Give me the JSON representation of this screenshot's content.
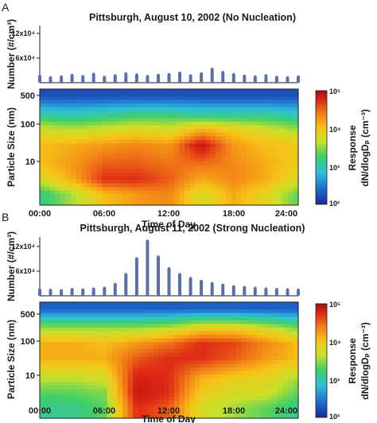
{
  "chart_data": [
    {
      "panel": "A",
      "title": "Pittsburgh, August 10, 2002 (No Nucleation)",
      "number_panel": {
        "type": "bar",
        "ylabel": "Number (#/cm³)",
        "ytick_labels": [
          "12x10⁴",
          "6x10⁴"
        ],
        "yticks": [
          120000,
          60000
        ],
        "ylim": [
          0,
          150000
        ],
        "x": [
          0,
          1,
          2,
          3,
          4,
          5,
          6,
          7,
          8,
          9,
          10,
          11,
          12,
          13,
          14,
          15,
          16,
          17,
          18,
          19,
          20,
          21,
          22,
          23,
          24
        ],
        "values": [
          18000,
          14000,
          16000,
          20000,
          17000,
          23000,
          15000,
          19000,
          24000,
          21000,
          17000,
          20000,
          22000,
          26000,
          19000,
          24000,
          36000,
          28000,
          22000,
          18000,
          16000,
          19000,
          15000,
          14000,
          16000
        ]
      },
      "size_panel": {
        "type": "heatmap",
        "ylabel": "Particle Size (nm)",
        "xlabel": "Time of Day",
        "ytick_labels": [
          "500",
          "100",
          "10"
        ],
        "yticks": [
          500,
          100,
          10
        ],
        "ylim": [
          3,
          700
        ],
        "yscale": "log",
        "xtick_labels": [
          "00:00",
          "06:00",
          "12:00",
          "18:00",
          "24:00"
        ],
        "xticks": [
          0,
          6,
          12,
          18,
          24
        ],
        "xlim": [
          0,
          24
        ],
        "z_times": [
          0,
          3,
          6,
          9,
          12,
          15,
          18,
          21,
          24
        ],
        "z_diam": [
          5,
          10,
          20,
          50,
          100,
          200,
          500
        ],
        "z_log10": [
          [
            3.0,
            3.4,
            3.9,
            4.1,
            4.2,
            3.6,
            4.0,
            3.7,
            3.2
          ],
          [
            3.6,
            4.0,
            4.6,
            4.6,
            4.4,
            4.0,
            4.2,
            4.0,
            3.6
          ],
          [
            3.9,
            4.1,
            4.4,
            4.4,
            4.3,
            4.3,
            4.2,
            4.0,
            3.8
          ],
          [
            3.9,
            4.0,
            4.1,
            4.2,
            4.1,
            4.8,
            4.1,
            3.9,
            3.8
          ],
          [
            3.6,
            3.5,
            3.6,
            3.7,
            3.6,
            4.0,
            3.8,
            3.6,
            3.4
          ],
          [
            3.0,
            2.9,
            3.0,
            3.1,
            3.1,
            3.0,
            3.0,
            3.0,
            2.9
          ],
          [
            2.2,
            2.2,
            2.2,
            2.2,
            2.2,
            2.2,
            2.2,
            2.2,
            2.2
          ]
        ]
      },
      "colorbar": {
        "label": "Response",
        "unit_label": "dN/dlogDₚ (cm⁻³)",
        "tick_labels": [
          "10⁵",
          "10⁴",
          "10³",
          "10²"
        ],
        "log10_ticks": [
          5,
          4,
          3,
          2
        ],
        "range_log10": [
          2,
          5
        ]
      }
    },
    {
      "panel": "B",
      "title": "Pittsburgh, August 11, 2002 (Strong Nucleation)",
      "number_panel": {
        "type": "bar",
        "ylabel": "Number (#/cm³)",
        "ytick_labels": [
          "12x10⁴",
          "6x10⁴"
        ],
        "yticks": [
          120000,
          60000
        ],
        "ylim": [
          0,
          150000
        ],
        "x": [
          0,
          1,
          2,
          3,
          4,
          5,
          6,
          7,
          8,
          9,
          10,
          11,
          12,
          13,
          14,
          15,
          16,
          17,
          18,
          19,
          20,
          21,
          22,
          23,
          24
        ],
        "values": [
          16000,
          15000,
          14000,
          17000,
          16000,
          18000,
          20000,
          30000,
          55000,
          95000,
          140000,
          100000,
          70000,
          55000,
          45000,
          38000,
          32000,
          28000,
          24000,
          22000,
          20000,
          18000,
          17000,
          16000,
          15000
        ]
      },
      "size_panel": {
        "type": "heatmap",
        "ylabel": "Particle Size (nm)",
        "xlabel": "Time of Day",
        "ytick_labels": [
          "500",
          "100",
          "10"
        ],
        "yticks": [
          500,
          100,
          10
        ],
        "ylim": [
          3,
          700
        ],
        "yscale": "log",
        "xtick_labels": [
          "00:00",
          "06:00",
          "12:00",
          "18:00",
          "24:00"
        ],
        "xticks": [
          0,
          6,
          12,
          18,
          24
        ],
        "xlim": [
          0,
          24
        ],
        "z_times": [
          0,
          3,
          6,
          9,
          12,
          15,
          18,
          21,
          24
        ],
        "z_diam": [
          5,
          10,
          20,
          50,
          100,
          200,
          500
        ],
        "z_log10": [
          [
            3.0,
            3.0,
            3.2,
            4.6,
            4.4,
            3.6,
            3.4,
            3.2,
            3.0
          ],
          [
            3.2,
            3.2,
            3.3,
            4.8,
            4.6,
            3.8,
            3.6,
            3.6,
            3.2
          ],
          [
            3.5,
            3.5,
            3.6,
            4.7,
            4.6,
            4.0,
            3.8,
            3.7,
            3.4
          ],
          [
            4.0,
            4.0,
            4.0,
            4.4,
            4.6,
            4.6,
            4.4,
            4.1,
            3.9
          ],
          [
            4.0,
            4.0,
            3.9,
            4.1,
            4.3,
            4.6,
            4.5,
            4.2,
            3.9
          ],
          [
            3.4,
            3.4,
            3.4,
            3.4,
            3.5,
            3.8,
            3.8,
            3.6,
            3.3
          ],
          [
            2.3,
            2.3,
            2.3,
            2.3,
            2.3,
            2.3,
            2.3,
            2.3,
            2.3
          ]
        ]
      },
      "colorbar": {
        "label": "Response",
        "unit_label": "dN/dlogDₚ (cm⁻³)",
        "tick_labels": [
          "10⁵",
          "10⁴",
          "10³",
          "10²"
        ],
        "log10_ticks": [
          5,
          4,
          3,
          2
        ],
        "range_log10": [
          2,
          5
        ]
      }
    }
  ],
  "colors": {
    "bar": "#5a6fa8",
    "axis": "#1a1a1a",
    "colormap": [
      "#1a2a9a",
      "#1f6fd0",
      "#2fc0d8",
      "#3fcf6a",
      "#c8e02a",
      "#f7c417",
      "#f27d17",
      "#dd2616",
      "#a80e0e"
    ]
  }
}
